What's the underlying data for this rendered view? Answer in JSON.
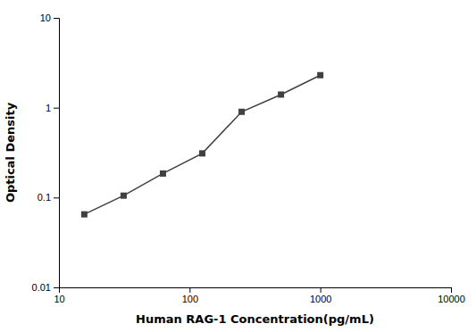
{
  "chart_data": {
    "type": "line",
    "x": [
      15.625,
      31.25,
      62.5,
      125,
      250,
      500,
      1000
    ],
    "values": [
      0.065,
      0.105,
      0.185,
      0.31,
      0.9,
      1.4,
      2.3
    ],
    "xlabel": "Human RAG-1 Concentration(pg/mL)",
    "ylabel": "Optical Density",
    "xlim": [
      10,
      10000
    ],
    "ylim": [
      0.01,
      10
    ],
    "xticks": [
      10,
      100,
      1000,
      10000
    ],
    "yticks": [
      0.01,
      0.1,
      1,
      10
    ],
    "log": true,
    "grid": false,
    "color": "#404040",
    "marker": "square"
  }
}
